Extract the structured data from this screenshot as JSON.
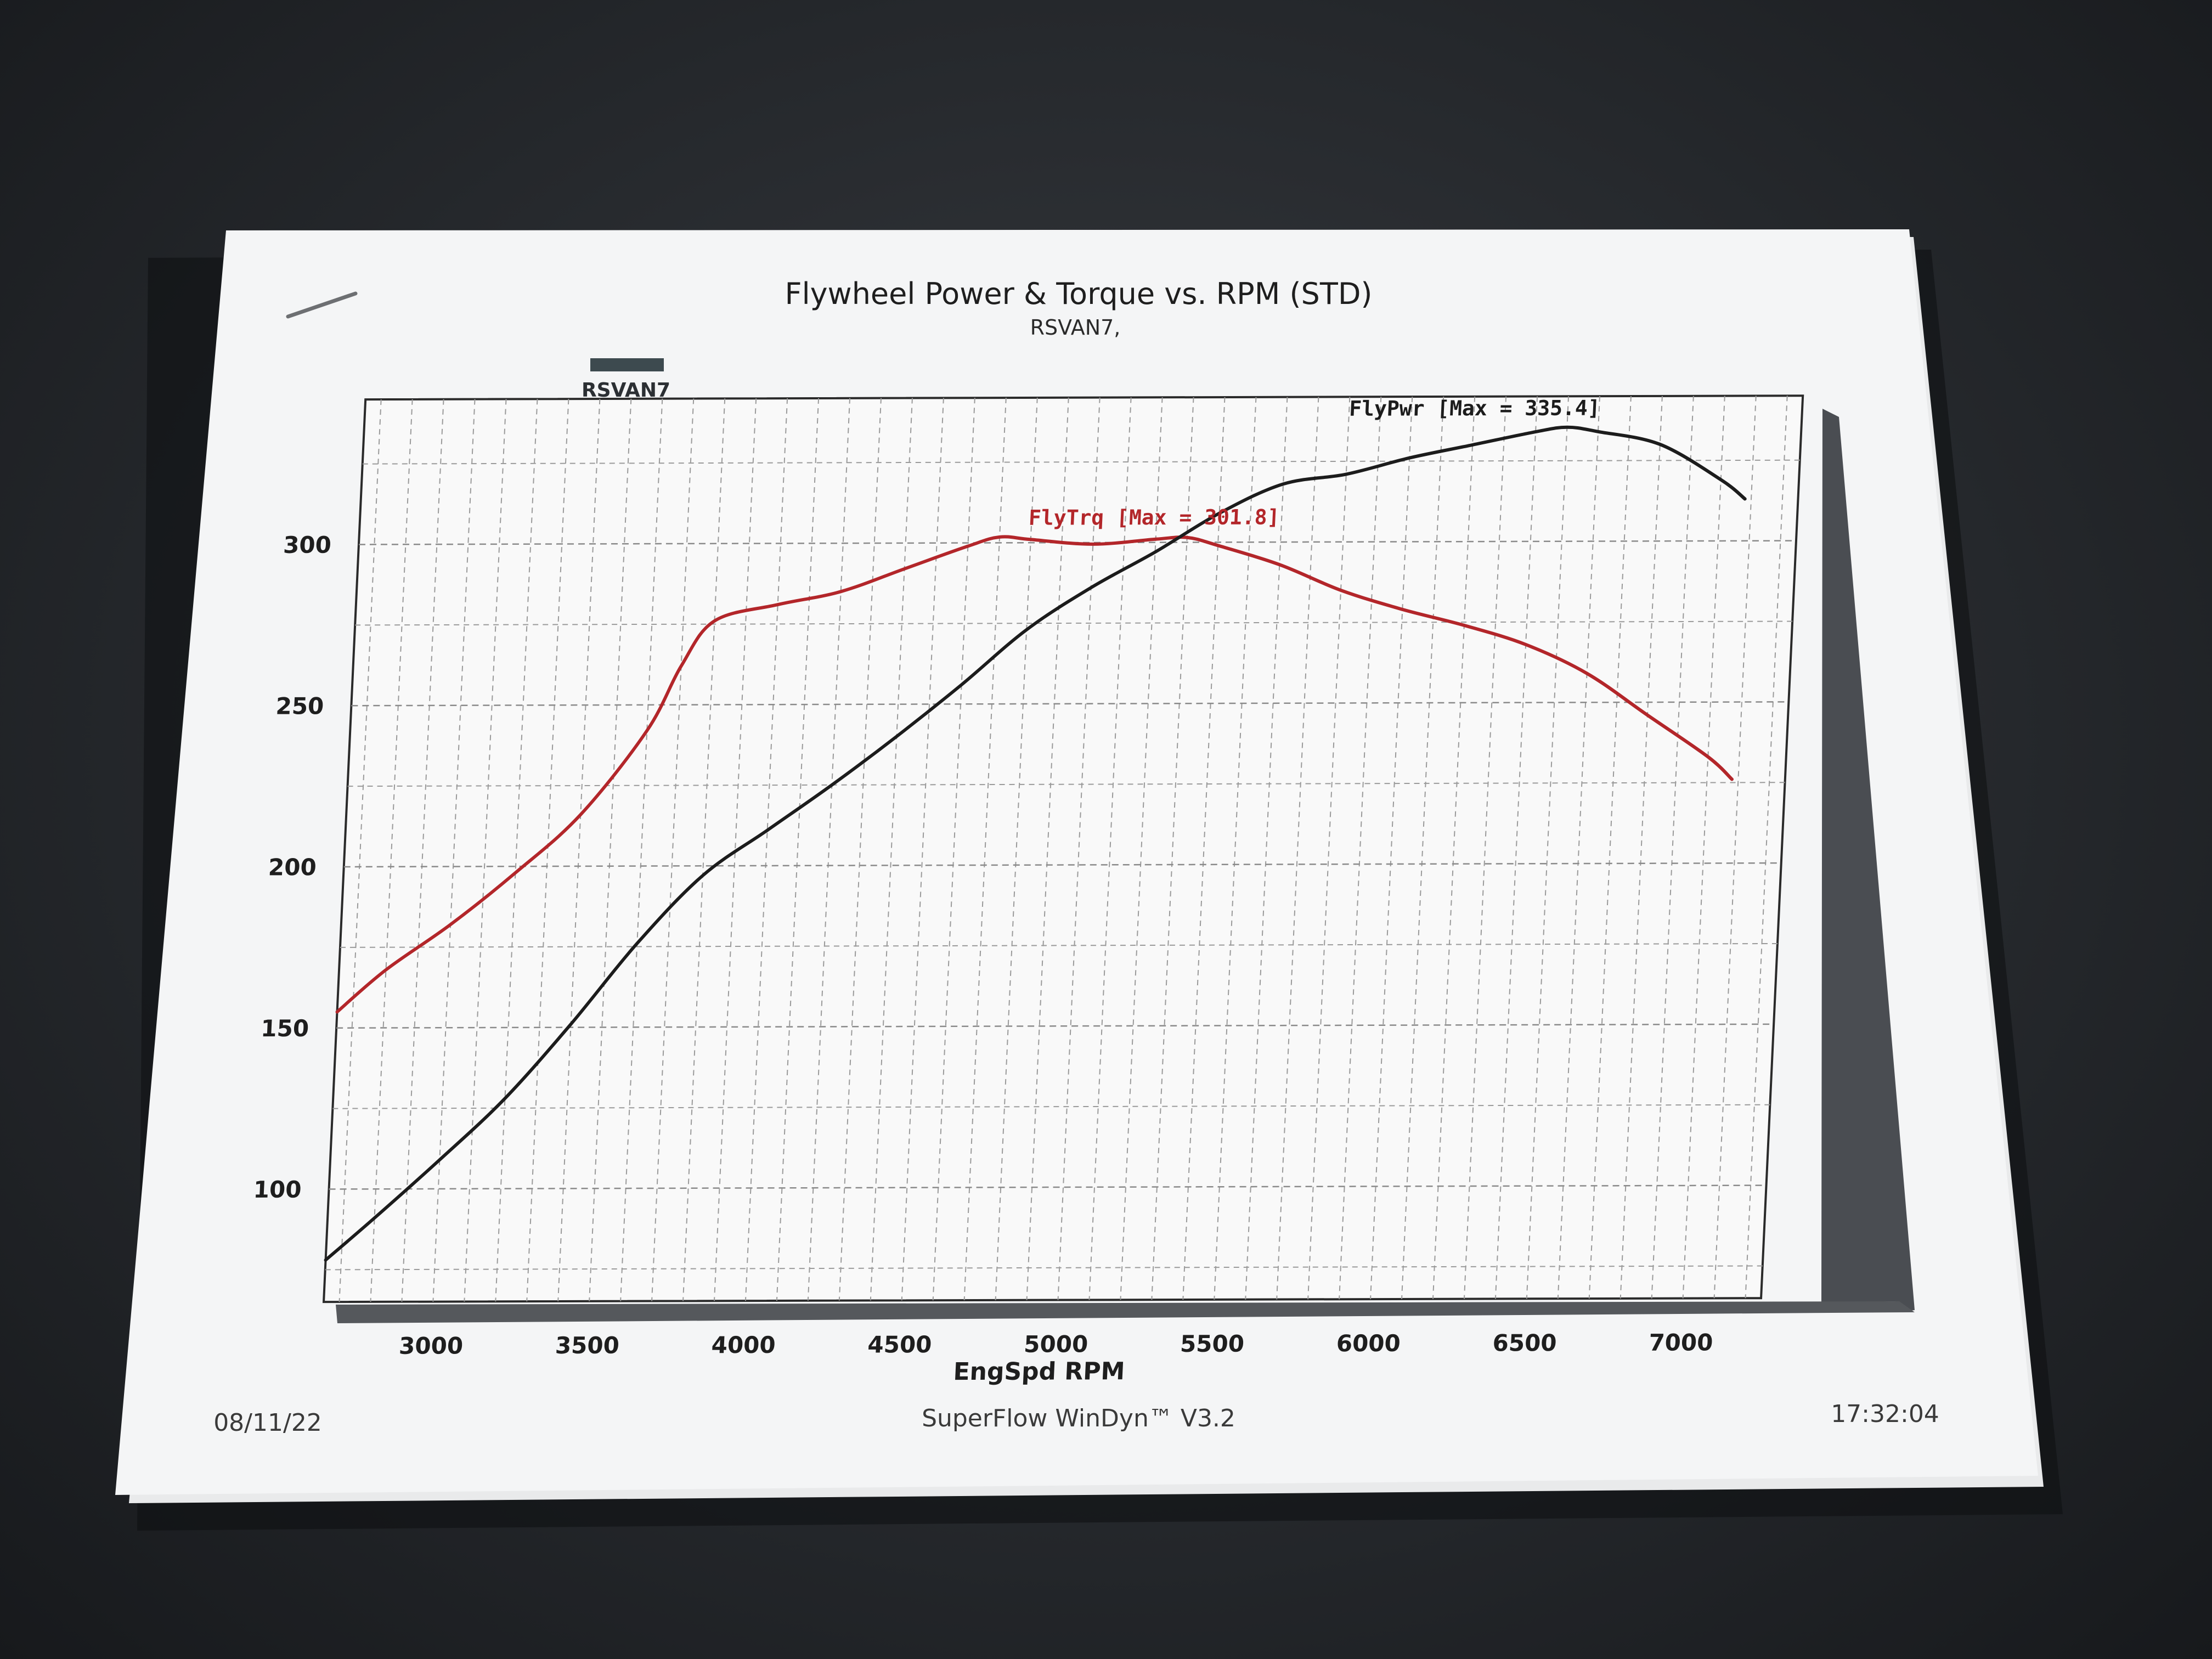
{
  "colors": {
    "torque": "#b3262a",
    "power": "#1c1c1c",
    "legend_swatch": "#3d4a4f"
  },
  "chart_data": {
    "type": "line",
    "title": "Flywheel Power & Torque vs. RPM (STD)",
    "subtitle": "RSVAN7,",
    "legend": [
      "RSVAN7"
    ],
    "xlabel": "EngSpd RPM",
    "ylabel": "",
    "xlim": [
      2650,
      7250
    ],
    "ylim": [
      65,
      345
    ],
    "x_ticks": [
      3000,
      3500,
      4000,
      4500,
      5000,
      5500,
      6000,
      6500,
      7000
    ],
    "y_ticks": [
      100,
      150,
      200,
      250,
      300
    ],
    "grid": true,
    "series": [
      {
        "name": "FlyTrq",
        "annotation": "FlyTrq [Max = 301.8]",
        "x": [
          2650,
          2800,
          3000,
          3200,
          3400,
          3600,
          3700,
          3800,
          4000,
          4200,
          4400,
          4600,
          4700,
          4800,
          5000,
          5200,
          5300,
          5400,
          5600,
          5800,
          6000,
          6200,
          6400,
          6600,
          6800,
          7000,
          7080
        ],
        "values": [
          155,
          168,
          182,
          198,
          216,
          242,
          262,
          276,
          281,
          285,
          292,
          299,
          301.8,
          301,
          299.5,
          301,
          301.5,
          299,
          293,
          285,
          279,
          274,
          268,
          259,
          246,
          233,
          226
        ]
      },
      {
        "name": "FlyPwr",
        "annotation": "FlyPwr [Max = 335.4]",
        "x": [
          2650,
          2800,
          3000,
          3200,
          3400,
          3600,
          3800,
          4000,
          4200,
          4400,
          4600,
          4800,
          5000,
          5200,
          5400,
          5600,
          5800,
          6000,
          6200,
          6400,
          6500,
          6600,
          6800,
          7000,
          7080
        ],
        "values": [
          78,
          91,
          109,
          128,
          151,
          176,
          197,
          211,
          225,
          240,
          256,
          273,
          286,
          297,
          309,
          318,
          321,
          326,
          330,
          334,
          335.4,
          334,
          330,
          319,
          313
        ]
      }
    ]
  },
  "footer": {
    "date": "08/11/22",
    "software": "SuperFlow WinDyn™ V3.2",
    "time": "17:32:04"
  }
}
